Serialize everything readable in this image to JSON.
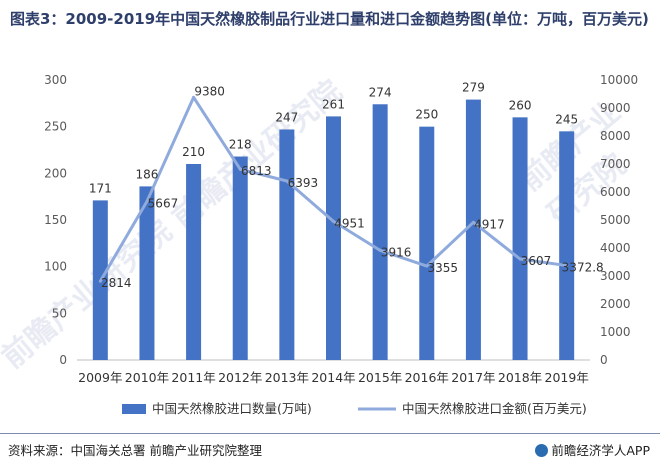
{
  "title": "图表3：2009-2019年中国天然橡胶制品行业进口量和进口金额趋势图(单位：万吨，百万美元)",
  "source": "资料来源：中国海关总署 前瞻产业研究院整理",
  "brand": "前瞻经济学人APP",
  "watermark": "前瞻产业研究院",
  "colors": {
    "bar": "#4472c4",
    "line": "#8faadc",
    "title": "#2f3f6b"
  },
  "chart_data": {
    "type": "bar+line",
    "categories": [
      "2009年",
      "2010年",
      "2011年",
      "2012年",
      "2013年",
      "2014年",
      "2015年",
      "2016年",
      "2017年",
      "2018年",
      "2019年"
    ],
    "series": [
      {
        "name": "中国天然橡胶进口数量(万吨)",
        "type": "bar",
        "axis": "left",
        "values": [
          171,
          186,
          210,
          218,
          247,
          261,
          274,
          250,
          279,
          260,
          245
        ],
        "labels": [
          "171",
          "186",
          "210",
          "218",
          "247",
          "261",
          "274",
          "250",
          "279",
          "260",
          "245"
        ]
      },
      {
        "name": "中国天然橡胶进口金额(百万美元)",
        "type": "line",
        "axis": "right",
        "values": [
          2814,
          5667,
          9380,
          6813,
          6393,
          4951,
          3916,
          3355,
          4917,
          3607,
          3372.8
        ],
        "labels": [
          "2814",
          "5667",
          "9380",
          "6813",
          "6393",
          "4951",
          "3916",
          "3355",
          "4917",
          "3607",
          "3372.8"
        ]
      }
    ],
    "y_left": {
      "range": [
        0,
        300
      ],
      "ticks": [
        "0",
        "50",
        "100",
        "150",
        "200",
        "250",
        "300"
      ]
    },
    "y_right": {
      "range": [
        0,
        10000
      ],
      "ticks": [
        "0",
        "1000",
        "2000",
        "3000",
        "4000",
        "5000",
        "6000",
        "7000",
        "8000",
        "9000",
        "10000"
      ]
    },
    "legend_position": "bottom"
  }
}
